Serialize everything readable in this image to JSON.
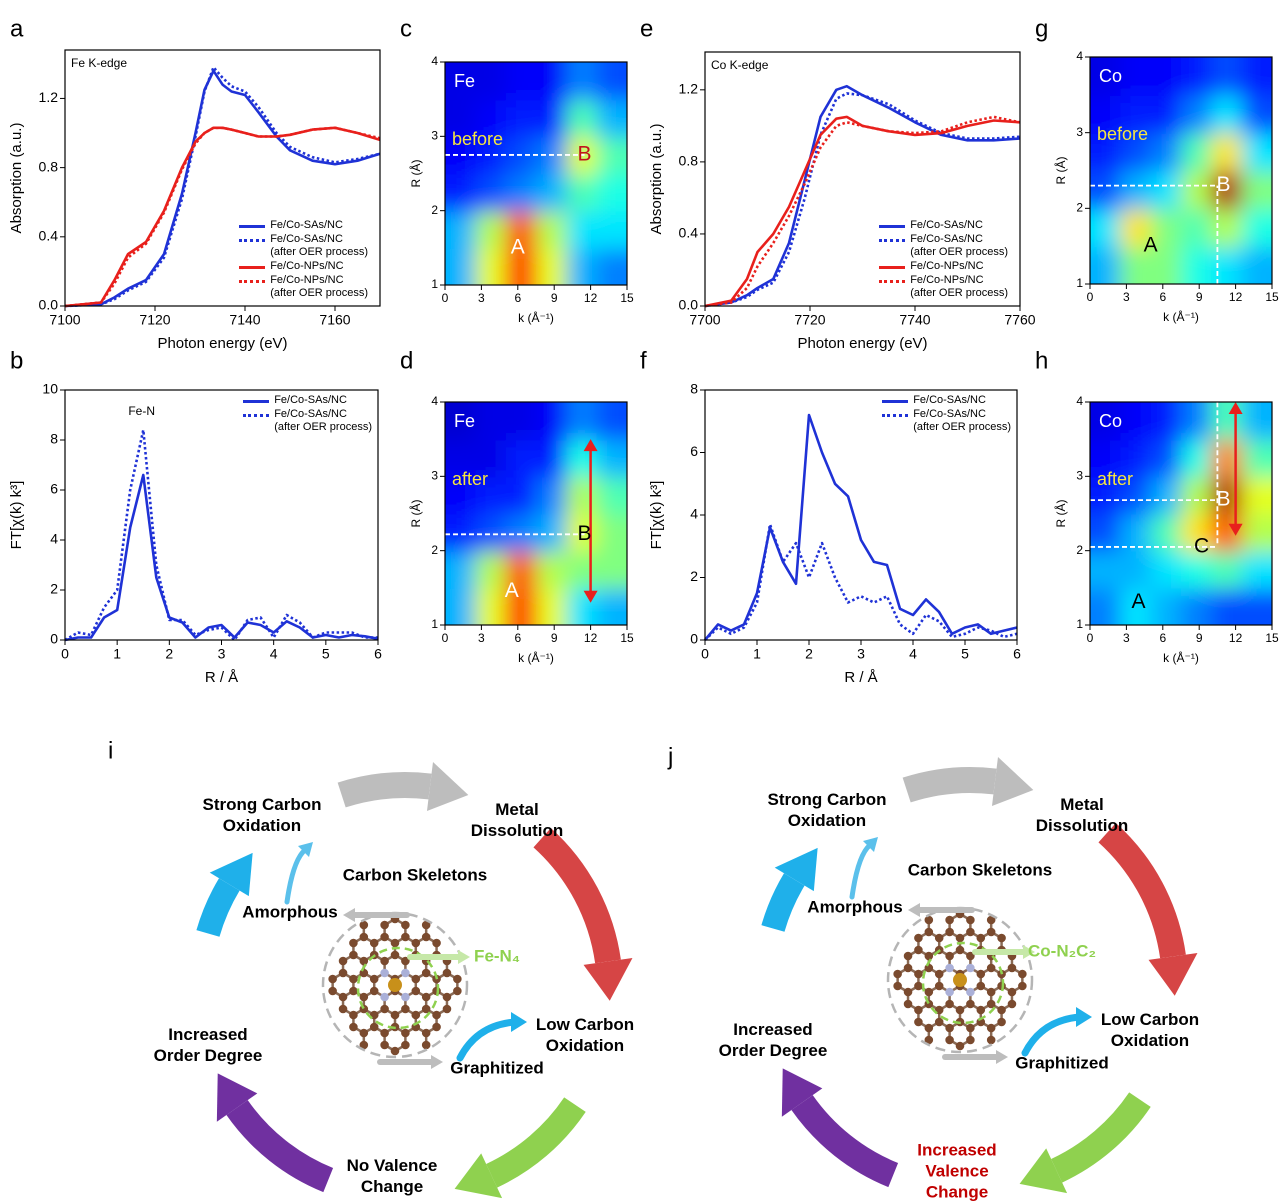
{
  "chart_data": [
    {
      "panel": "a",
      "type": "line",
      "annotation": "Fe K-edge",
      "x_label": "Photon energy (eV)",
      "y_label": "Absorption (a.u.)",
      "x": [
        7100,
        7108,
        7111,
        7114,
        7118,
        7122,
        7126,
        7129,
        7131,
        7133,
        7135,
        7137,
        7140,
        7143,
        7147,
        7150,
        7155,
        7160,
        7165,
        7170
      ],
      "xlim": [
        7100,
        7170
      ],
      "xticks": [
        7100,
        7120,
        7140,
        7160
      ],
      "ylim": [
        0,
        1.48
      ],
      "yticks": [
        {
          "value": 0,
          "label": "0.0"
        },
        0.4,
        0.8,
        1.2
      ],
      "legend": "lower right",
      "series": [
        {
          "name": "Fe/Co-SAs/NC",
          "color": "#1f32d6",
          "style": "solid",
          "values": [
            0,
            0.01,
            0.05,
            0.1,
            0.15,
            0.3,
            0.65,
            1.0,
            1.25,
            1.36,
            1.28,
            1.24,
            1.22,
            1.12,
            0.98,
            0.9,
            0.84,
            0.82,
            0.84,
            0.88
          ]
        },
        {
          "name": "Fe/Co-SAs/NC\n(after OER process)",
          "color": "#1f32d6",
          "style": "dotted",
          "values": [
            0,
            0.01,
            0.04,
            0.09,
            0.14,
            0.28,
            0.62,
            0.98,
            1.24,
            1.38,
            1.32,
            1.27,
            1.24,
            1.15,
            1.0,
            0.92,
            0.86,
            0.83,
            0.85,
            0.88
          ]
        },
        {
          "name": "Fe/Co-NPs/NC",
          "color": "#e8201c",
          "style": "solid",
          "values": [
            0,
            0.02,
            0.15,
            0.3,
            0.37,
            0.55,
            0.8,
            0.95,
            1.0,
            1.03,
            1.03,
            1.02,
            1.0,
            0.98,
            0.98,
            0.99,
            1.02,
            1.03,
            1.0,
            0.96
          ]
        },
        {
          "name": "Fe/Co-NPs/NC\n(after OER process)",
          "color": "#e8201c",
          "style": "dotted",
          "values": [
            0,
            0.02,
            0.13,
            0.28,
            0.36,
            0.54,
            0.79,
            0.94,
            1.0,
            1.03,
            1.03,
            1.02,
            1.0,
            0.98,
            0.98,
            0.99,
            1.02,
            1.03,
            1.0,
            0.97
          ]
        }
      ]
    },
    {
      "panel": "b",
      "type": "line",
      "annotation": "Fe-N",
      "x_label": "R / Å",
      "y_label": "FT[χ(k) k³]",
      "x": [
        0,
        0.25,
        0.5,
        0.75,
        1.0,
        1.25,
        1.5,
        1.75,
        2.0,
        2.25,
        2.5,
        2.75,
        3.0,
        3.25,
        3.5,
        3.75,
        4.0,
        4.25,
        4.5,
        4.75,
        5.0,
        5.25,
        5.5,
        5.75,
        6.0
      ],
      "xlim": [
        0,
        6
      ],
      "xticks": [
        0,
        1,
        2,
        3,
        4,
        5,
        6
      ],
      "ylim": [
        0,
        10
      ],
      "yticks": [
        0,
        2,
        4,
        6,
        8,
        10
      ],
      "legend": "upper right",
      "series": [
        {
          "name": "Fe/Co-SAs/NC",
          "color": "#1f32d6",
          "style": "solid",
          "values": [
            0,
            0.1,
            0.1,
            0.9,
            1.2,
            4.5,
            6.6,
            2.5,
            0.9,
            0.7,
            0.1,
            0.5,
            0.6,
            0.1,
            0.7,
            0.6,
            0.3,
            0.75,
            0.5,
            0.1,
            0.2,
            0.1,
            0.2,
            0.15,
            0.05
          ]
        },
        {
          "name": "Fe/Co-SAs/NC\n(after OER process)",
          "color": "#1f32d6",
          "style": "dotted",
          "values": [
            0,
            0.3,
            0.2,
            1.3,
            2.0,
            6.0,
            8.4,
            3.0,
            0.8,
            0.8,
            0.2,
            0.4,
            0.5,
            0,
            0.8,
            0.9,
            0.1,
            1.0,
            0.7,
            0.1,
            0.3,
            0.3,
            0.3,
            0.1,
            0.1
          ]
        }
      ]
    },
    {
      "panel": "c",
      "type": "heatmap",
      "element": "Fe",
      "state": "before",
      "x_label": "k (Å⁻¹)",
      "y_label": "R (Å)",
      "x": [
        1.25,
        3.75,
        6.25,
        8.75,
        11.25,
        13.75
      ],
      "y": [
        1.25,
        1.75,
        2.25,
        2.75,
        3.25,
        3.75
      ],
      "z": [
        [
          0.3,
          0.6,
          0.85,
          0.6,
          0.3,
          0.25
        ],
        [
          0.3,
          0.55,
          0.8,
          0.55,
          0.35,
          0.35
        ],
        [
          0.15,
          0.2,
          0.25,
          0.3,
          0.45,
          0.4
        ],
        [
          0.12,
          0.15,
          0.2,
          0.25,
          0.6,
          0.45
        ],
        [
          0.1,
          0.12,
          0.15,
          0.15,
          0.45,
          0.3
        ],
        [
          0.1,
          0.1,
          0.12,
          0.12,
          0.25,
          0.2
        ]
      ],
      "xlim": [
        0,
        15
      ],
      "xticks": [
        0,
        3,
        6,
        9,
        12,
        15
      ],
      "ylim": [
        1,
        4
      ],
      "yticks": [
        1,
        2,
        3,
        4
      ],
      "peaks": [
        {
          "label": "A",
          "k": 6,
          "R": 1.5,
          "color": "#ffffff"
        },
        {
          "label": "B",
          "k": 11.5,
          "R": 2.75,
          "color": "#c0141c",
          "guide": true
        }
      ]
    },
    {
      "panel": "d",
      "type": "heatmap",
      "element": "Fe",
      "state": "after",
      "x_label": "k (Å⁻¹)",
      "y_label": "R (Å)",
      "x": [
        1.25,
        3.75,
        6.25,
        8.75,
        11.25,
        13.75
      ],
      "y": [
        1.25,
        1.75,
        2.25,
        2.75,
        3.25,
        3.75
      ],
      "z": [
        [
          0.3,
          0.6,
          0.85,
          0.6,
          0.35,
          0.3
        ],
        [
          0.3,
          0.55,
          0.8,
          0.55,
          0.5,
          0.5
        ],
        [
          0.15,
          0.2,
          0.25,
          0.3,
          0.6,
          0.5
        ],
        [
          0.12,
          0.15,
          0.15,
          0.25,
          0.55,
          0.45
        ],
        [
          0.1,
          0.1,
          0.15,
          0.15,
          0.4,
          0.3
        ],
        [
          0.08,
          0.1,
          0.1,
          0.12,
          0.25,
          0.2
        ]
      ],
      "xlim": [
        0,
        15
      ],
      "xticks": [
        0,
        3,
        6,
        9,
        12,
        15
      ],
      "ylim": [
        1,
        4
      ],
      "yticks": [
        1,
        2,
        3,
        4
      ],
      "peaks": [
        {
          "label": "A",
          "k": 5.5,
          "R": 1.45,
          "color": "#ffffff"
        },
        {
          "label": "B",
          "k": 11.5,
          "R": 2.22,
          "color": "#000000",
          "guide": true
        }
      ],
      "arrow": {
        "k": 12,
        "R": [
          1.3,
          3.5
        ]
      }
    },
    {
      "panel": "e",
      "type": "line",
      "annotation": "Co K-edge",
      "x_label": "Photon energy (eV)",
      "y_label": "Absorption (a.u.)",
      "x": [
        7700,
        7705,
        7708,
        7710,
        7713,
        7716,
        7719,
        7722,
        7725,
        7727,
        7730,
        7735,
        7740,
        7745,
        7750,
        7755,
        7760
      ],
      "xlim": [
        7700,
        7760
      ],
      "xticks": [
        7700,
        7720,
        7740,
        7760
      ],
      "ylim": [
        0,
        1.41
      ],
      "yticks": [
        {
          "value": 0,
          "label": "0.0"
        },
        0.4,
        0.8,
        1.2
      ],
      "legend": "lower right",
      "series": [
        {
          "name": "Fe/Co-SAs/NC",
          "color": "#1f32d6",
          "style": "solid",
          "values": [
            0,
            0.02,
            0.06,
            0.1,
            0.15,
            0.35,
            0.7,
            1.05,
            1.2,
            1.22,
            1.17,
            1.1,
            1.02,
            0.95,
            0.92,
            0.92,
            0.93
          ]
        },
        {
          "name": "Fe/Co-SAs/NC\n(after OER process)",
          "color": "#1f32d6",
          "style": "dotted",
          "values": [
            0,
            0.02,
            0.05,
            0.09,
            0.13,
            0.3,
            0.6,
            0.95,
            1.15,
            1.18,
            1.17,
            1.12,
            1.03,
            0.96,
            0.93,
            0.93,
            0.94
          ]
        },
        {
          "name": "Fe/Co-NPs/NC",
          "color": "#e8201c",
          "style": "solid",
          "values": [
            0,
            0.03,
            0.15,
            0.3,
            0.4,
            0.55,
            0.75,
            0.95,
            1.04,
            1.05,
            1.0,
            0.97,
            0.95,
            0.96,
            1.0,
            1.03,
            1.02
          ]
        },
        {
          "name": "Fe/Co-NPs/NC\n(after OER process)",
          "color": "#e8201c",
          "style": "dotted",
          "values": [
            0,
            0.02,
            0.1,
            0.22,
            0.35,
            0.5,
            0.68,
            0.88,
            1.0,
            1.02,
            1.0,
            0.97,
            0.96,
            0.97,
            1.02,
            1.05,
            1.02
          ]
        }
      ]
    },
    {
      "panel": "f",
      "type": "line",
      "x_label": "R / Å",
      "y_label": "FT[χ(k) k³]",
      "x": [
        0,
        0.25,
        0.5,
        0.75,
        1.0,
        1.25,
        1.5,
        1.75,
        2.0,
        2.25,
        2.5,
        2.75,
        3.0,
        3.25,
        3.5,
        3.75,
        4.0,
        4.25,
        4.5,
        4.75,
        5.0,
        5.25,
        5.5,
        5.75,
        6.0
      ],
      "xlim": [
        0,
        6
      ],
      "xticks": [
        0,
        1,
        2,
        3,
        4,
        5,
        6
      ],
      "ylim": [
        0,
        8
      ],
      "yticks": [
        0,
        2,
        4,
        6,
        8
      ],
      "legend": "upper right",
      "series": [
        {
          "name": "Fe/Co-SAs/NC",
          "color": "#1f32d6",
          "style": "solid",
          "values": [
            0,
            0.5,
            0.3,
            0.5,
            1.5,
            3.6,
            2.5,
            1.8,
            7.2,
            6.0,
            5.0,
            4.6,
            3.2,
            2.5,
            2.4,
            1.0,
            0.8,
            1.3,
            0.9,
            0.2,
            0.4,
            0.5,
            0.2,
            0.3,
            0.4
          ]
        },
        {
          "name": "Fe/Co-SAs/NC\n(after OER process)",
          "color": "#1f32d6",
          "style": "dotted",
          "values": [
            0,
            0.4,
            0.2,
            0.4,
            1.2,
            3.7,
            2.5,
            3.1,
            2.0,
            3.1,
            2.0,
            1.2,
            1.4,
            1.2,
            1.4,
            0.5,
            0.2,
            0.8,
            0.6,
            0.1,
            0.2,
            0.4,
            0.3,
            0.1,
            0.2
          ]
        }
      ]
    },
    {
      "panel": "g",
      "type": "heatmap",
      "element": "Co",
      "state": "before",
      "x_label": "k (Å⁻¹)",
      "y_label": "R (Å)",
      "x": [
        1.25,
        3.75,
        6.25,
        8.75,
        11.25,
        13.75
      ],
      "y": [
        1.25,
        1.75,
        2.25,
        2.75,
        3.25,
        3.75
      ],
      "z": [
        [
          0.3,
          0.5,
          0.5,
          0.4,
          0.35,
          0.3
        ],
        [
          0.35,
          0.65,
          0.5,
          0.45,
          0.55,
          0.4
        ],
        [
          0.2,
          0.3,
          0.35,
          0.55,
          0.95,
          0.5
        ],
        [
          0.15,
          0.2,
          0.25,
          0.45,
          0.65,
          0.35
        ],
        [
          0.12,
          0.15,
          0.15,
          0.25,
          0.35,
          0.2
        ],
        [
          0.1,
          0.12,
          0.12,
          0.15,
          0.2,
          0.15
        ]
      ],
      "xlim": [
        0,
        15
      ],
      "xticks": [
        0,
        3,
        6,
        9,
        12,
        15
      ],
      "ylim": [
        1,
        4
      ],
      "yticks": [
        1,
        2,
        3,
        4
      ],
      "peaks": [
        {
          "label": "A",
          "k": 5,
          "R": 1.5,
          "color": "#000000"
        },
        {
          "label": "B",
          "k": 11,
          "R": 2.3,
          "color": "#ffffff",
          "guide": true
        }
      ],
      "vguide": {
        "k": 10.5,
        "R": [
          1,
          2.3
        ]
      }
    },
    {
      "panel": "h",
      "type": "heatmap",
      "element": "Co",
      "state": "after",
      "x_label": "k (Å⁻¹)",
      "y_label": "R (Å)",
      "x": [
        1.25,
        3.75,
        6.25,
        8.75,
        11.25,
        13.75
      ],
      "y": [
        1.25,
        1.75,
        2.25,
        2.75,
        3.25,
        3.75
      ],
      "z": [
        [
          0.25,
          0.35,
          0.3,
          0.25,
          0.2,
          0.2
        ],
        [
          0.3,
          0.3,
          0.35,
          0.4,
          0.45,
          0.35
        ],
        [
          0.2,
          0.3,
          0.45,
          0.65,
          0.8,
          0.55
        ],
        [
          0.15,
          0.2,
          0.3,
          0.55,
          0.95,
          0.6
        ],
        [
          0.12,
          0.15,
          0.2,
          0.4,
          0.75,
          0.45
        ],
        [
          0.1,
          0.12,
          0.15,
          0.25,
          0.45,
          0.3
        ]
      ],
      "xlim": [
        0,
        15
      ],
      "xticks": [
        0,
        3,
        6,
        9,
        12,
        15
      ],
      "ylim": [
        1,
        4
      ],
      "yticks": [
        1,
        2,
        3,
        4
      ],
      "peaks": [
        {
          "label": "A",
          "k": 4,
          "R": 1.3,
          "color": "#000000"
        },
        {
          "label": "B",
          "k": 11,
          "R": 2.68,
          "color": "#ffffff",
          "guide": true
        },
        {
          "label": "C",
          "k": 9.2,
          "R": 2.05,
          "color": "#000000",
          "guide": true
        }
      ],
      "vguide": {
        "k": 10.5,
        "R": [
          2.1,
          4
        ]
      },
      "arrow": {
        "k": 12,
        "R": [
          2.2,
          4
        ]
      }
    }
  ],
  "diagrams": [
    {
      "panel": "i",
      "labels": [
        {
          "text": "Strong Carbon\nOxidation",
          "color": "#000000"
        },
        {
          "text": "Metal\nDissolution",
          "color": "#000000"
        },
        {
          "text": "Carbon Skeletons",
          "color": "#000000"
        },
        {
          "text": "Amorphous",
          "color": "#000000"
        },
        {
          "text": "Fe-N₄",
          "color": "#8fd14f"
        },
        {
          "text": "Low Carbon\nOxidation",
          "color": "#000000"
        },
        {
          "text": "Graphitized",
          "color": "#000000"
        },
        {
          "text": "No Valence\nChange",
          "color": "#000000"
        },
        {
          "text": "Increased\nOrder Degree",
          "color": "#000000"
        }
      ]
    },
    {
      "panel": "j",
      "labels": [
        {
          "text": "Strong Carbon\nOxidation",
          "color": "#000000"
        },
        {
          "text": "Metal\nDissolution",
          "color": "#000000"
        },
        {
          "text": "Carbon Skeletons",
          "color": "#000000"
        },
        {
          "text": "Amorphous",
          "color": "#000000"
        },
        {
          "text": "Co-N₂C₂",
          "color": "#8fd14f"
        },
        {
          "text": "Low Carbon\nOxidation",
          "color": "#000000"
        },
        {
          "text": "Graphitized",
          "color": "#000000"
        },
        {
          "text": "Increased\nValence\nChange",
          "color": "#c00000"
        },
        {
          "text": "Increased\nOrder Degree",
          "color": "#000000"
        }
      ]
    }
  ]
}
